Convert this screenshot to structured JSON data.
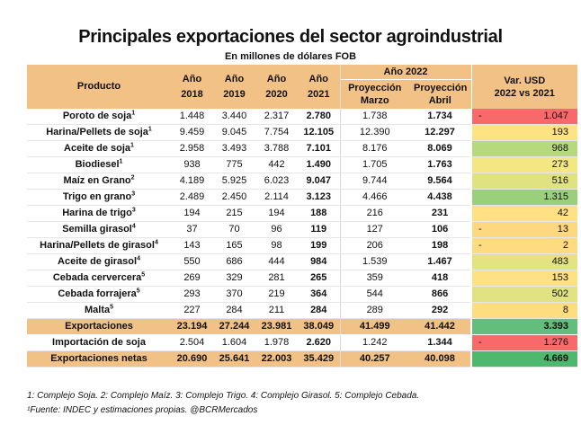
{
  "title": "Principales exportaciones del sector agroindustrial",
  "subtitle": "En millones de dólares FOB",
  "headers": {
    "producto": "Producto",
    "years": [
      [
        "Año",
        "2018"
      ],
      [
        "Año",
        "2019"
      ],
      [
        "Año",
        "2020"
      ],
      [
        "Año",
        "2021"
      ]
    ],
    "group2022": "Año 2022",
    "proj_marzo": [
      "Proyección",
      "Marzo"
    ],
    "proj_abril": [
      "Proyección",
      "Abril"
    ],
    "var": [
      "Var. USD",
      "2022 vs 2021"
    ]
  },
  "rows": [
    {
      "name": "Poroto de soja",
      "sup": "1",
      "v": [
        "1.448",
        "3.440",
        "2.317",
        "2.780",
        "1.738",
        "1.734"
      ],
      "var": "1.047",
      "neg": true,
      "color": "#f8696b"
    },
    {
      "name": "Harina/Pellets de soja",
      "sup": "1",
      "v": [
        "9.459",
        "9.045",
        "7.754",
        "12.105",
        "12.390",
        "12.297"
      ],
      "var": "193",
      "neg": false,
      "color": "#fee382"
    },
    {
      "name": "Aceite de soja",
      "sup": "1",
      "v": [
        "2.958",
        "3.493",
        "3.788",
        "7.101",
        "8.176",
        "8.069"
      ],
      "var": "968",
      "neg": false,
      "color": "#b7d97d"
    },
    {
      "name": "Biodiesel",
      "sup": "1",
      "v": [
        "938",
        "775",
        "442",
        "1.490",
        "1.705",
        "1.763"
      ],
      "var": "273",
      "neg": false,
      "color": "#f5e684"
    },
    {
      "name": "Maíz en Grano",
      "sup": "2",
      "v": [
        "4.189",
        "5.925",
        "6.023",
        "9.047",
        "9.744",
        "9.564"
      ],
      "var": "516",
      "neg": false,
      "color": "#e0e282"
    },
    {
      "name": "Trigo en grano",
      "sup": "3",
      "v": [
        "2.489",
        "2.450",
        "2.114",
        "3.123",
        "4.466",
        "4.438"
      ],
      "var": "1.315",
      "neg": false,
      "color": "#9acf7b"
    },
    {
      "name": "Harina de trigo",
      "sup": "3",
      "v": [
        "194",
        "215",
        "194",
        "188",
        "216",
        "231"
      ],
      "var": "42",
      "neg": false,
      "color": "#ffe083"
    },
    {
      "name": "Semilla girasol",
      "sup": "4",
      "v": [
        "37",
        "70",
        "96",
        "119",
        "127",
        "106"
      ],
      "var": "13",
      "neg": true,
      "color": "#fed880"
    },
    {
      "name": "Harina/Pellets de girasol",
      "sup": "4",
      "v": [
        "143",
        "165",
        "98",
        "199",
        "206",
        "198"
      ],
      "var": "2",
      "neg": true,
      "color": "#fedb81"
    },
    {
      "name": "Aceite de girasol",
      "sup": "4",
      "v": [
        "550",
        "686",
        "444",
        "984",
        "1.539",
        "1.467"
      ],
      "var": "483",
      "neg": false,
      "color": "#e4e382"
    },
    {
      "name": "Cebada cervercera",
      "sup": "5",
      "v": [
        "269",
        "329",
        "281",
        "265",
        "359",
        "418"
      ],
      "var": "153",
      "neg": false,
      "color": "#fde182"
    },
    {
      "name": "Cebada forrajera",
      "sup": "5",
      "v": [
        "293",
        "370",
        "219",
        "364",
        "544",
        "866"
      ],
      "var": "502",
      "neg": false,
      "color": "#e1e282"
    },
    {
      "name": "Malta",
      "sup": "5",
      "v": [
        "227",
        "284",
        "211",
        "284",
        "289",
        "292"
      ],
      "var": "8",
      "neg": false,
      "color": "#fedd81"
    }
  ],
  "exportaciones": {
    "name": "Exportaciones",
    "v": [
      "23.194",
      "27.244",
      "23.981",
      "38.049",
      "41.499",
      "41.442"
    ],
    "var": "3.393",
    "color": "#63be7b"
  },
  "importacion": {
    "name": "Importación de soja",
    "v": [
      "2.504",
      "1.604",
      "1.978",
      "2.620",
      "1.242",
      "1.344"
    ],
    "var": "1.276",
    "neg": true,
    "color": "#f8696b"
  },
  "netas": {
    "name": "Exportaciones netas",
    "v": [
      "20.690",
      "25.641",
      "22.003",
      "35.429",
      "40.257",
      "40.098"
    ],
    "var": "4.669",
    "color": "#4fb86f"
  },
  "notes": {
    "line1": "1: Complejo Soja.  2: Complejo Maíz.  3: Complejo Trigo.  4: Complejo Girasol.  5: Complejo Cebada.",
    "line2": "¹Fuente: INDEC y estimaciones propias.  @BCRMercados"
  }
}
